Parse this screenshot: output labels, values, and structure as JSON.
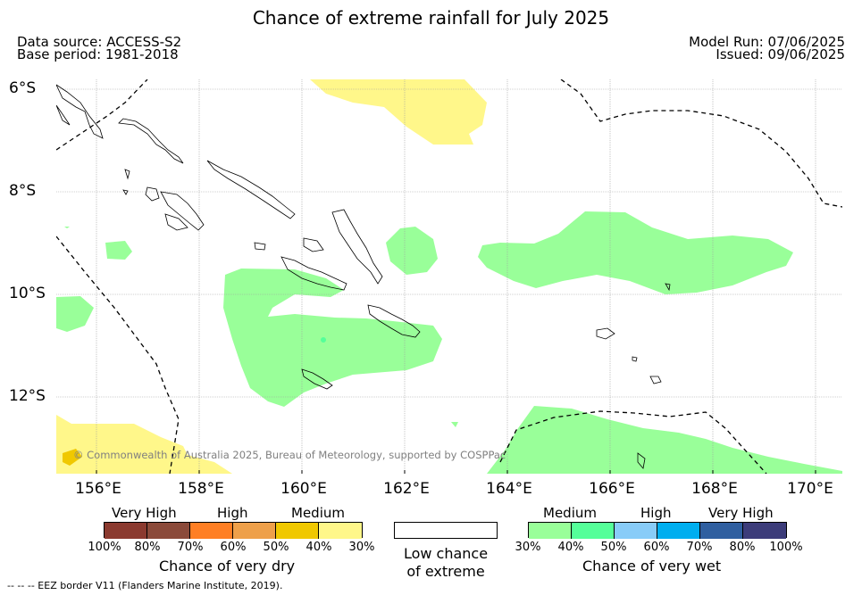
{
  "title": "Chance of extreme rainfall for July 2025",
  "data_source": "Data source: ACCESS-S2",
  "base_period": "Base period: 1981-2018",
  "model_run": "Model Run: 07/06/2025",
  "issued": "Issued: 09/06/2025",
  "map": {
    "lat_labels": [
      "6°S",
      "8°S",
      "10°S",
      "12°S"
    ],
    "lon_labels": [
      "156°E",
      "158°E",
      "160°E",
      "162°E",
      "164°E",
      "166°E",
      "168°E",
      "170°E"
    ],
    "copyright": "© Commonwealth of Australia 2025, Bureau of Meteorology, supported by COSPPac",
    "colors": {
      "land_outline": "#000000",
      "medium_wet": "#99ff99",
      "medium_dry": "#fff78a",
      "high_dry": "#f0c800",
      "grid": "#a0a0a0"
    }
  },
  "legend": {
    "dry": {
      "levels": [
        "Very High",
        "High",
        "Medium"
      ],
      "colors": [
        "#8b3a2f",
        "#8b4a3a",
        "#ff7f24",
        "#eea04a",
        "#f0c800",
        "#fff78a"
      ],
      "ticks": [
        "100%",
        "80%",
        "70%",
        "60%",
        "50%",
        "40%",
        "30%"
      ],
      "caption": "Chance of very dry"
    },
    "low": {
      "line1": "Low chance",
      "line2": "of extreme"
    },
    "wet": {
      "levels": [
        "Medium",
        "High",
        "Very High"
      ],
      "colors": [
        "#99ff99",
        "#55ff99",
        "#88ccf8",
        "#00aeef",
        "#2f5fa0",
        "#3c3c7a"
      ],
      "ticks": [
        "30%",
        "40%",
        "50%",
        "60%",
        "70%",
        "80%",
        "100%"
      ],
      "caption": "Chance of very wet"
    }
  },
  "footer": "--  --  -- EEZ border V11 (Flanders Marine Institute, 2019)."
}
